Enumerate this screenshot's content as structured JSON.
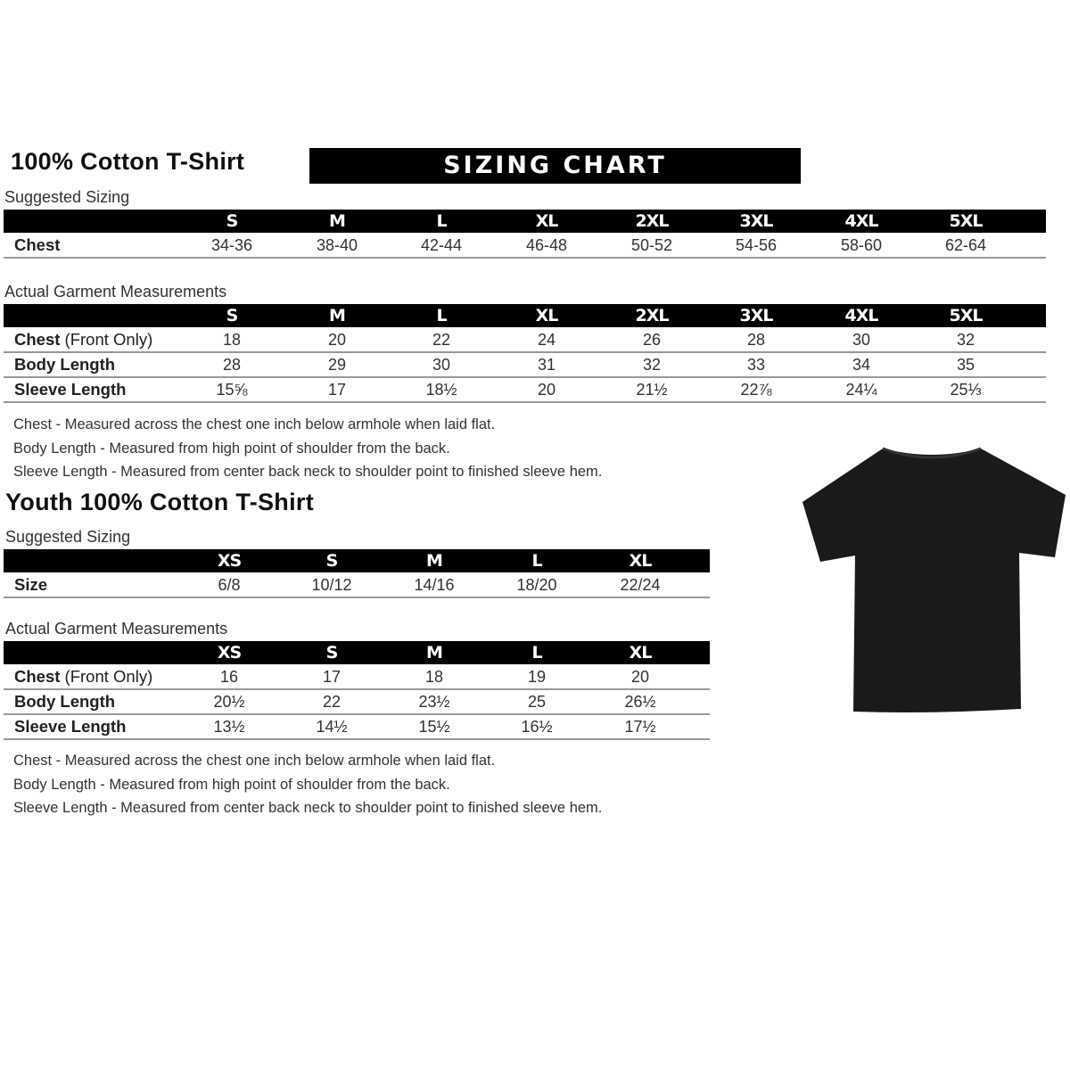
{
  "adult": {
    "title": "100% Cotton T-Shirt",
    "banner": "SIZING CHART",
    "suggested_label": "Suggested Sizing",
    "sizes": [
      "S",
      "M",
      "L",
      "XL",
      "2XL",
      "3XL",
      "4XL",
      "5XL"
    ],
    "suggested_rows": [
      {
        "label": "Chest",
        "values": [
          "34-36",
          "38-40",
          "42-44",
          "46-48",
          "50-52",
          "54-56",
          "58-60",
          "62-64"
        ]
      }
    ],
    "actual_label": "Actual Garment Measurements",
    "actual_rows": [
      {
        "label": "Chest",
        "label_extra": " (Front Only)",
        "values": [
          "18",
          "20",
          "22",
          "24",
          "26",
          "28",
          "30",
          "32"
        ]
      },
      {
        "label": "Body Length",
        "label_extra": "",
        "values": [
          "28",
          "29",
          "30",
          "31",
          "32",
          "33",
          "34",
          "35"
        ]
      },
      {
        "label": "Sleeve Length",
        "label_extra": "",
        "values": [
          "15⅝",
          "17",
          "18½",
          "20",
          "21½",
          "22⅞",
          "24¼",
          "25⅓"
        ]
      }
    ],
    "notes": [
      "Chest - Measured across the chest one inch below armhole when laid flat.",
      "Body Length - Measured from high point of shoulder from the back.",
      "Sleeve Length - Measured from center back neck to shoulder point to finished sleeve hem."
    ]
  },
  "youth": {
    "title": "Youth 100% Cotton T-Shirt",
    "suggested_label": "Suggested Sizing",
    "sizes": [
      "XS",
      "S",
      "M",
      "L",
      "XL"
    ],
    "suggested_rows": [
      {
        "label": "Size",
        "values": [
          "6/8",
          "10/12",
          "14/16",
          "18/20",
          "22/24"
        ]
      }
    ],
    "actual_label": "Actual Garment Measurements",
    "actual_rows": [
      {
        "label": "Chest",
        "label_extra": " (Front Only)",
        "values": [
          "16",
          "17",
          "18",
          "19",
          "20"
        ]
      },
      {
        "label": "Body Length",
        "label_extra": "",
        "values": [
          "20½",
          "22",
          "23½",
          "25",
          "26½"
        ]
      },
      {
        "label": "Sleeve Length",
        "label_extra": "",
        "values": [
          "13½",
          "14½",
          "15½",
          "16½",
          "17½"
        ]
      }
    ],
    "notes": [
      "Chest - Measured across the chest one inch below armhole when laid flat.",
      "Body Length - Measured from high point of shoulder from the back.",
      "Sleeve Length - Measured from center back neck to shoulder point to finished sleeve hem."
    ]
  },
  "tshirt_color": "#1a1a1a"
}
